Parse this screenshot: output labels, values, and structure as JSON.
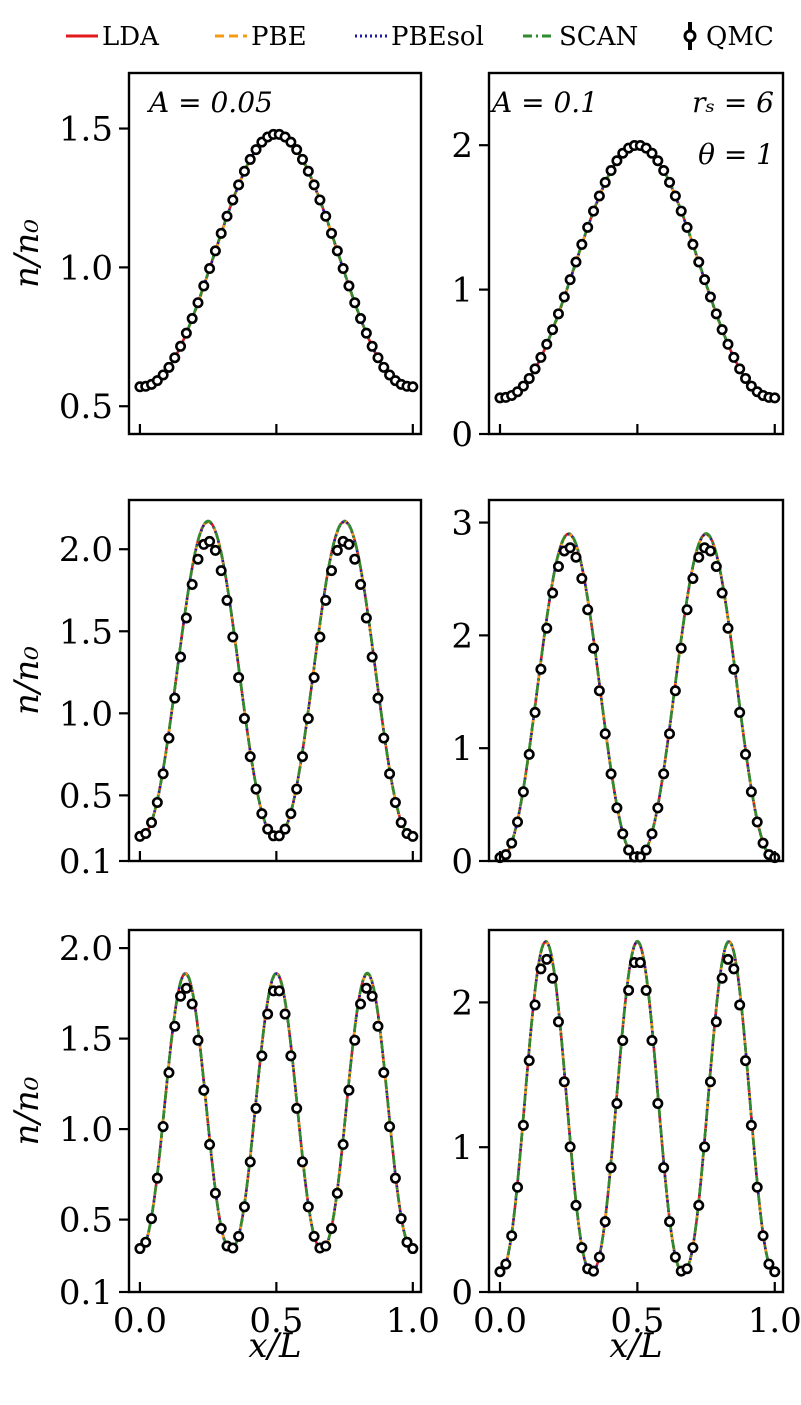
{
  "legend": {
    "entries": [
      {
        "label": "LDA",
        "color": "#e31a1c",
        "style": "solid"
      },
      {
        "label": "PBE",
        "color": "#f39c12",
        "style": "dashed"
      },
      {
        "label": "PBEsol",
        "color": "#1a1aa6",
        "style": "dotted"
      },
      {
        "label": "SCAN",
        "color": "#2e8b2e",
        "style": "dashdot"
      },
      {
        "label": "QMC",
        "color": "#000000",
        "style": "marker"
      }
    ]
  },
  "chart_data": [
    {
      "type": "line",
      "id": "top-left",
      "peaks": 1,
      "min": 0.57,
      "max": 1.48,
      "dft_overshoot": 0.0,
      "ylim": [
        0.4,
        1.7
      ],
      "yticks": [
        0.5,
        1.0,
        1.5
      ],
      "ytick_labels": [
        "0.5",
        "1.0",
        "1.5"
      ],
      "ylabel": "n/n₀",
      "xlim": [
        -0.04,
        1.03
      ],
      "xticks": [
        0.0,
        0.5,
        1.0
      ],
      "xtick_labels": [],
      "annotations": [
        "A = 0.05"
      ]
    },
    {
      "type": "line",
      "id": "top-right",
      "peaks": 1,
      "min": 0.25,
      "max": 2.0,
      "dft_overshoot": 0.0,
      "ylim": [
        0.0,
        2.5
      ],
      "yticks": [
        0,
        1,
        2
      ],
      "ytick_labels": [
        "0",
        "1",
        "2"
      ],
      "ylabel": "",
      "xlim": [
        -0.04,
        1.03
      ],
      "xticks": [
        0.0,
        0.5,
        1.0
      ],
      "xtick_labels": [],
      "annotations": [
        "A = 0.1",
        "rₛ = 6",
        "θ = 1"
      ]
    },
    {
      "type": "line",
      "id": "middle-left",
      "peaks": 2,
      "min": 0.25,
      "max": 2.05,
      "dft_overshoot": 0.12,
      "ylim": [
        0.1,
        2.3
      ],
      "yticks": [
        0.1,
        0.5,
        1.0,
        1.5,
        2.0
      ],
      "ytick_labels": [
        "0.1",
        "0.5",
        "1.0",
        "1.5",
        "2.0"
      ],
      "ylabel": "n/n₀",
      "xlim": [
        -0.04,
        1.03
      ],
      "xticks": [
        0.0,
        0.5,
        1.0
      ],
      "xtick_labels": [],
      "annotations": []
    },
    {
      "type": "line",
      "id": "middle-right",
      "peaks": 2,
      "min": 0.03,
      "max": 2.78,
      "dft_overshoot": 0.12,
      "ylim": [
        0.0,
        3.2
      ],
      "yticks": [
        0,
        1,
        2,
        3
      ],
      "ytick_labels": [
        "0",
        "1",
        "2",
        "3"
      ],
      "ylabel": "",
      "xlim": [
        -0.04,
        1.03
      ],
      "xticks": [
        0.0,
        0.5,
        1.0
      ],
      "xtick_labels": [],
      "annotations": []
    },
    {
      "type": "line",
      "id": "bottom-left",
      "peaks": 3,
      "min": 0.34,
      "max": 1.78,
      "dft_overshoot": 0.08,
      "ylim": [
        0.1,
        2.1
      ],
      "yticks": [
        0.1,
        0.5,
        1.0,
        1.5,
        2.0
      ],
      "ytick_labels": [
        "0.1",
        "0.5",
        "1.0",
        "1.5",
        "2.0"
      ],
      "ylabel": "n/n₀",
      "xlim": [
        -0.04,
        1.03
      ],
      "xticks": [
        0.0,
        0.5,
        1.0
      ],
      "xtick_labels": [
        "0.0",
        "0.5",
        "1.0"
      ],
      "xlabel": "x/L",
      "annotations": []
    },
    {
      "type": "line",
      "id": "bottom-right",
      "peaks": 3,
      "min": 0.14,
      "max": 2.3,
      "dft_overshoot": 0.12,
      "ylim": [
        0.0,
        2.5
      ],
      "yticks": [
        0,
        1,
        2
      ],
      "ytick_labels": [
        "0",
        "1",
        "2"
      ],
      "ylabel": "",
      "xlim": [
        -0.04,
        1.03
      ],
      "xticks": [
        0.0,
        0.5,
        1.0
      ],
      "xtick_labels": [
        "0.0",
        "0.5",
        "1.0"
      ],
      "xlabel": "x/L",
      "annotations": []
    }
  ]
}
